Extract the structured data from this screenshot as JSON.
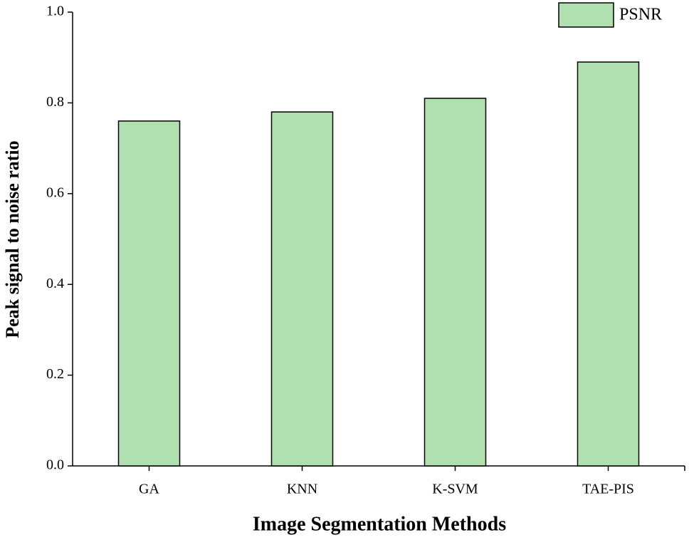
{
  "chart_data": {
    "type": "bar",
    "xlabel": "Image Segmentation Methods",
    "ylabel": "Peak signal to noise ratio",
    "categories": [
      "GA",
      "KNN",
      "K-SVM",
      "TAE-PIS"
    ],
    "series": [
      {
        "name": "PSNR",
        "color": "#b0dfb0",
        "values": [
          0.76,
          0.78,
          0.81,
          0.89
        ]
      }
    ],
    "ylim": [
      0,
      1
    ],
    "yticks": [
      {
        "value": 0,
        "label": "0.0"
      },
      0.2,
      0.4,
      0.6,
      0.8,
      {
        "value": 1,
        "label": "1.0"
      }
    ],
    "legend": "top-right",
    "grid": false
  }
}
